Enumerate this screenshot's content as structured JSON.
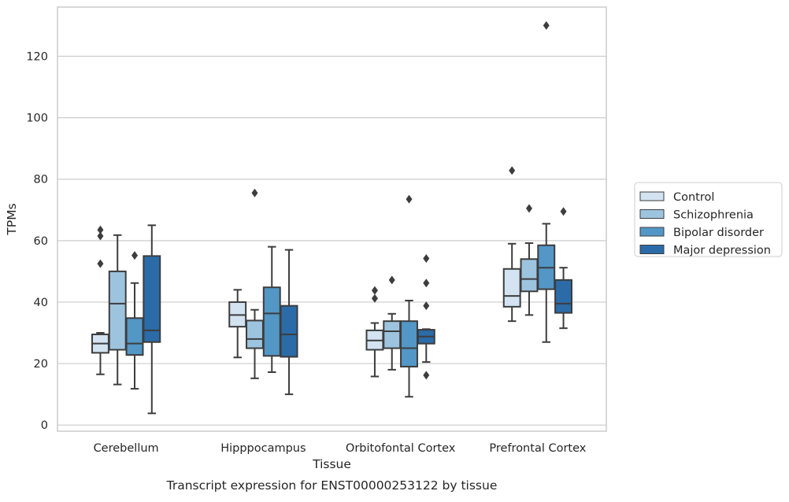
{
  "chart_data": {
    "type": "box",
    "title": "",
    "caption": "Transcript expression for ENST00000253122 by tissue",
    "xlabel": "Tissue",
    "ylabel": "TPMs",
    "ylim": [
      -2,
      136
    ],
    "yticks": [
      0,
      20,
      40,
      60,
      80,
      100,
      120
    ],
    "grid": "horizontal",
    "legend_position": "right",
    "categories": [
      "Cerebellum",
      "Hipppocampus",
      "Orbitofontal Cortex",
      "Prefrontal Cortex"
    ],
    "series": [
      {
        "name": "Control",
        "color": "#d3e3f2",
        "boxes": [
          {
            "q1": 23.5,
            "median": 26.5,
            "q3": 29.5,
            "whisker_low": 16.5,
            "whisker_high": 30.0,
            "outliers": [
              63.5,
              61.5,
              52.5
            ]
          },
          {
            "q1": 32.0,
            "median": 35.8,
            "q3": 40.0,
            "whisker_low": 22.0,
            "whisker_high": 44.0,
            "outliers": []
          },
          {
            "q1": 24.5,
            "median": 27.5,
            "q3": 30.8,
            "whisker_low": 15.8,
            "whisker_high": 33.2,
            "outliers": [
              43.8,
              41.2
            ]
          },
          {
            "q1": 38.5,
            "median": 42.0,
            "q3": 50.8,
            "whisker_low": 33.8,
            "whisker_high": 59.0,
            "outliers": [
              82.8
            ]
          }
        ]
      },
      {
        "name": "Schizophrenia",
        "color": "#9dc4df",
        "boxes": [
          {
            "q1": 24.5,
            "median": 39.5,
            "q3": 50.0,
            "whisker_low": 13.2,
            "whisker_high": 61.8,
            "outliers": []
          },
          {
            "q1": 25.0,
            "median": 28.0,
            "q3": 34.0,
            "whisker_low": 15.2,
            "whisker_high": 37.5,
            "outliers": [
              75.5
            ]
          },
          {
            "q1": 25.0,
            "median": 30.5,
            "q3": 33.8,
            "whisker_low": 18.0,
            "whisker_high": 36.2,
            "outliers": [
              47.2
            ]
          },
          {
            "q1": 43.5,
            "median": 47.5,
            "q3": 54.0,
            "whisker_low": 35.8,
            "whisker_high": 59.2,
            "outliers": [
              70.5
            ]
          }
        ]
      },
      {
        "name": "Bipolar disorder",
        "color": "#5297c6",
        "boxes": [
          {
            "q1": 22.8,
            "median": 26.5,
            "q3": 34.8,
            "whisker_low": 11.8,
            "whisker_high": 46.2,
            "outliers": [
              55.2
            ]
          },
          {
            "q1": 22.5,
            "median": 36.3,
            "q3": 44.8,
            "whisker_low": 17.2,
            "whisker_high": 58.0,
            "outliers": []
          },
          {
            "q1": 19.0,
            "median": 25.0,
            "q3": 33.8,
            "whisker_low": 9.2,
            "whisker_high": 40.5,
            "outliers": [
              73.5
            ]
          },
          {
            "q1": 44.2,
            "median": 51.2,
            "q3": 58.5,
            "whisker_low": 27.0,
            "whisker_high": 65.5,
            "outliers": [
              130.0
            ]
          }
        ]
      },
      {
        "name": "Major depression",
        "color": "#2b6ba8",
        "boxes": [
          {
            "q1": 27.0,
            "median": 30.8,
            "q3": 55.0,
            "whisker_low": 3.8,
            "whisker_high": 65.0,
            "outliers": []
          },
          {
            "q1": 22.2,
            "median": 29.5,
            "q3": 38.8,
            "whisker_low": 10.0,
            "whisker_high": 57.0,
            "outliers": []
          },
          {
            "q1": 26.5,
            "median": 28.8,
            "q3": 31.0,
            "whisker_low": 20.5,
            "whisker_high": 31.2,
            "outliers": [
              54.2,
              46.2,
              38.8,
              16.2
            ]
          },
          {
            "q1": 36.5,
            "median": 39.5,
            "q3": 47.2,
            "whisker_low": 31.5,
            "whisker_high": 51.2,
            "outliers": [
              69.5
            ]
          }
        ]
      }
    ]
  }
}
